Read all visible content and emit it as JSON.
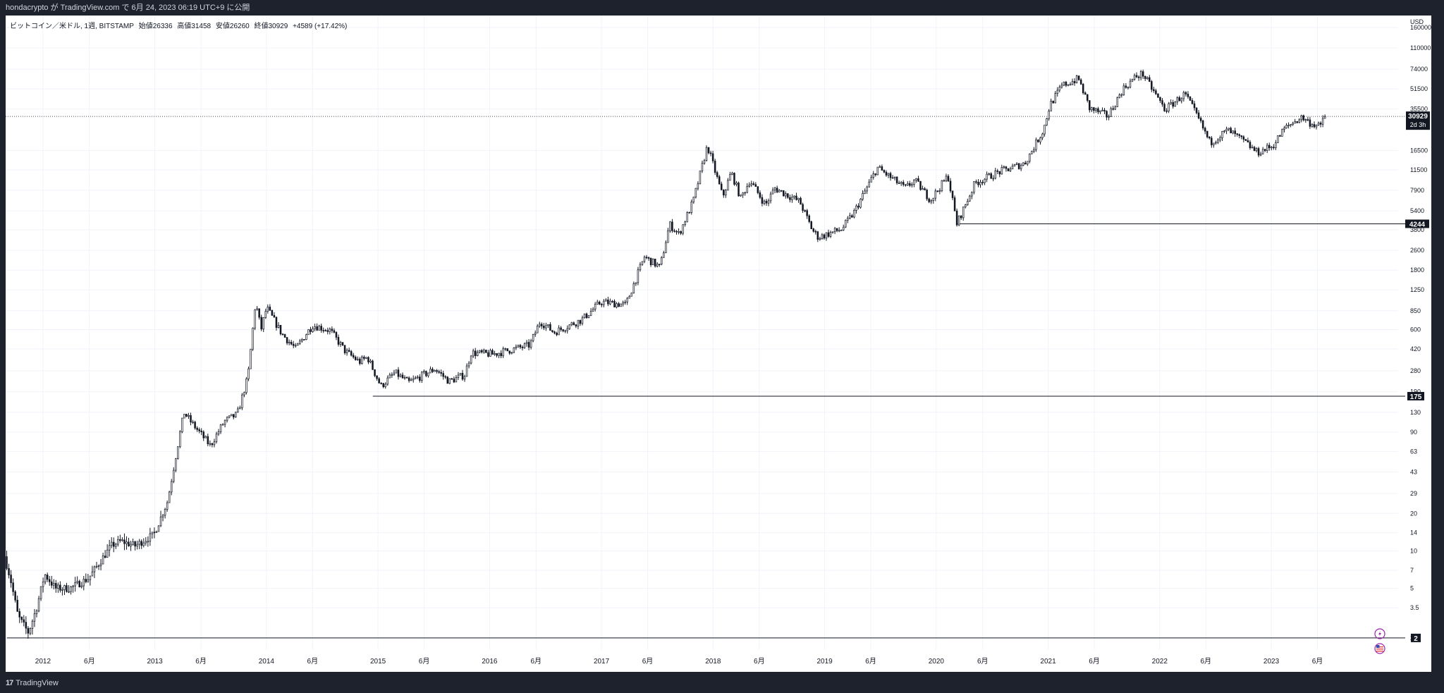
{
  "header": {
    "publish_text": "hondacrypto が TradingView.com で 6月 24, 2023 06:19 UTC+9 に公開"
  },
  "legend": {
    "symbol": "ビットコイン／米ドル, 1週, BITSTAMP",
    "open": "始値26336",
    "high": "高値31458",
    "low": "安値26260",
    "close": "終値30929",
    "change": "+4589 (+17.42%)"
  },
  "footer": {
    "brand": "TradingView",
    "logo_mark": "17"
  },
  "price_labels": {
    "current": "30929",
    "countdown": "2d 3h",
    "level_1": "4244",
    "level_2": "175",
    "level_3": "2"
  },
  "colors": {
    "candle": "#131722",
    "bg": "#ffffff",
    "frame": "#1e222d",
    "grid": "#f0f3fa"
  },
  "chart_data": {
    "type": "candlestick",
    "currency": "USD",
    "scale": "log",
    "y_ticks": [
      160000,
      110000,
      74000,
      51500,
      35500,
      16500,
      11500,
      7900,
      5400,
      3800,
      2600,
      1800,
      1250,
      850,
      600,
      420,
      280,
      190,
      130,
      90,
      63,
      43,
      29,
      20,
      14,
      10,
      7,
      5,
      3.5,
      2
    ],
    "x_ticks": [
      {
        "label": "2012",
        "date": "2012-01-01"
      },
      {
        "label": "6月",
        "date": "2012-06-01"
      },
      {
        "label": "2013",
        "date": "2013-01-01"
      },
      {
        "label": "6月",
        "date": "2013-06-01"
      },
      {
        "label": "2014",
        "date": "2014-01-01"
      },
      {
        "label": "6月",
        "date": "2014-06-01"
      },
      {
        "label": "2015",
        "date": "2015-01-01"
      },
      {
        "label": "6月",
        "date": "2015-06-01"
      },
      {
        "label": "2016",
        "date": "2016-01-01"
      },
      {
        "label": "6月",
        "date": "2016-06-01"
      },
      {
        "label": "2017",
        "date": "2017-01-01"
      },
      {
        "label": "6月",
        "date": "2017-06-01"
      },
      {
        "label": "2018",
        "date": "2018-01-01"
      },
      {
        "label": "6月",
        "date": "2018-06-01"
      },
      {
        "label": "2019",
        "date": "2019-01-01"
      },
      {
        "label": "6月",
        "date": "2019-06-01"
      },
      {
        "label": "2020",
        "date": "2020-01-01"
      },
      {
        "label": "6月",
        "date": "2020-06-01"
      },
      {
        "label": "2021",
        "date": "2021-01-01"
      },
      {
        "label": "6月",
        "date": "2021-06-01"
      },
      {
        "label": "2022",
        "date": "2022-01-01"
      },
      {
        "label": "6月",
        "date": "2022-06-01"
      },
      {
        "label": "2023",
        "date": "2023-01-01"
      },
      {
        "label": "6月",
        "date": "2023-06-01"
      }
    ],
    "x_range": [
      "2011-09-01",
      "2024-02-20"
    ],
    "y_range": [
      1.6,
      200000
    ],
    "current_price": 30929,
    "horizontal_levels": [
      {
        "value": 4244,
        "from": "2020-03-12"
      },
      {
        "value": 175,
        "from": "2014-12-15"
      },
      {
        "value": 2,
        "from": "2011-09-05"
      }
    ],
    "price_path": [
      [
        "2011-09-01",
        9
      ],
      [
        "2011-09-20",
        6
      ],
      [
        "2011-10-15",
        3
      ],
      [
        "2011-11-18",
        2.2
      ],
      [
        "2011-12-15",
        3.5
      ],
      [
        "2012-01-10",
        6.5
      ],
      [
        "2012-02-15",
        5
      ],
      [
        "2012-04-01",
        5
      ],
      [
        "2012-06-01",
        6
      ],
      [
        "2012-08-15",
        11
      ],
      [
        "2012-09-15",
        12
      ],
      [
        "2012-11-01",
        11
      ],
      [
        "2013-01-01",
        13.5
      ],
      [
        "2013-02-15",
        25
      ],
      [
        "2013-03-20",
        70
      ],
      [
        "2013-04-10",
        130
      ],
      [
        "2013-05-01",
        110
      ],
      [
        "2013-07-05",
        70
      ],
      [
        "2013-08-20",
        110
      ],
      [
        "2013-10-01",
        125
      ],
      [
        "2013-11-05",
        250
      ],
      [
        "2013-11-30",
        1000
      ],
      [
        "2013-12-18",
        600
      ],
      [
        "2014-01-05",
        900
      ],
      [
        "2014-02-25",
        550
      ],
      [
        "2014-04-10",
        420
      ],
      [
        "2014-05-20",
        580
      ],
      [
        "2014-06-05",
        650
      ],
      [
        "2014-08-01",
        590
      ],
      [
        "2014-09-20",
        400
      ],
      [
        "2014-11-05",
        330
      ],
      [
        "2014-12-01",
        360
      ],
      [
        "2015-01-14",
        210
      ],
      [
        "2015-03-01",
        270
      ],
      [
        "2015-04-15",
        225
      ],
      [
        "2015-07-10",
        290
      ],
      [
        "2015-08-25",
        230
      ],
      [
        "2015-10-15",
        260
      ],
      [
        "2015-11-05",
        390
      ],
      [
        "2016-01-15",
        380
      ],
      [
        "2016-05-15",
        450
      ],
      [
        "2016-06-18",
        700
      ],
      [
        "2016-08-02",
        570
      ],
      [
        "2016-11-01",
        720
      ],
      [
        "2017-01-03",
        1000
      ],
      [
        "2017-03-25",
        950
      ],
      [
        "2017-05-25",
        2300
      ],
      [
        "2017-07-15",
        1900
      ],
      [
        "2017-08-15",
        4200
      ],
      [
        "2017-09-15",
        3500
      ],
      [
        "2017-11-01",
        6500
      ],
      [
        "2017-12-17",
        18000
      ],
      [
        "2018-02-05",
        7000
      ],
      [
        "2018-03-05",
        11000
      ],
      [
        "2018-04-05",
        6800
      ],
      [
        "2018-05-05",
        9500
      ],
      [
        "2018-06-25",
        6000
      ],
      [
        "2018-07-25",
        8200
      ],
      [
        "2018-10-15",
        6400
      ],
      [
        "2018-11-25",
        3800
      ],
      [
        "2018-12-15",
        3300
      ],
      [
        "2019-03-01",
        3850
      ],
      [
        "2019-04-10",
        5200
      ],
      [
        "2019-06-26",
        12000
      ],
      [
        "2019-09-25",
        8200
      ],
      [
        "2019-10-26",
        9500
      ],
      [
        "2019-12-17",
        6600
      ],
      [
        "2020-02-12",
        10300
      ],
      [
        "2020-03-12",
        4244
      ],
      [
        "2020-05-10",
        9000
      ],
      [
        "2020-07-25",
        11000
      ],
      [
        "2020-10-20",
        13000
      ],
      [
        "2020-12-20",
        24000
      ],
      [
        "2021-01-10",
        38000
      ],
      [
        "2021-02-20",
        55000
      ],
      [
        "2021-04-14",
        62000
      ],
      [
        "2021-05-20",
        36000
      ],
      [
        "2021-07-20",
        31000
      ],
      [
        "2021-09-05",
        51000
      ],
      [
        "2021-10-20",
        65000
      ],
      [
        "2021-11-10",
        68000
      ],
      [
        "2022-01-22",
        35000
      ],
      [
        "2022-03-28",
        47000
      ],
      [
        "2022-05-10",
        30000
      ],
      [
        "2022-06-18",
        19000
      ],
      [
        "2022-08-15",
        24000
      ],
      [
        "2022-10-10",
        19200
      ],
      [
        "2022-11-20",
        15800
      ],
      [
        "2023-01-10",
        18000
      ],
      [
        "2023-02-15",
        24500
      ],
      [
        "2023-03-20",
        28000
      ],
      [
        "2023-04-15",
        30500
      ],
      [
        "2023-05-10",
        27500
      ],
      [
        "2023-06-15",
        25500
      ],
      [
        "2023-06-24",
        30929
      ]
    ]
  }
}
